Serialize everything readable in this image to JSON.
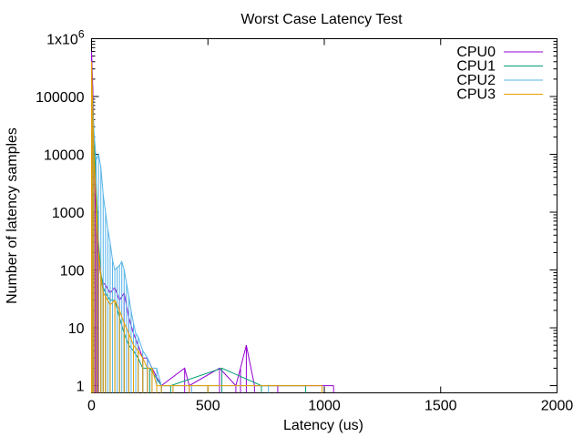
{
  "chart_data": {
    "type": "line",
    "title": "Worst Case Latency Test",
    "xlabel": "Latency (us)",
    "ylabel": "Number of latency samples",
    "x_scale": "linear",
    "y_scale": "log",
    "xlim": [
      0,
      2000
    ],
    "ylim": [
      0.75,
      1000000
    ],
    "x_ticks": [
      0,
      500,
      1000,
      1500,
      2000
    ],
    "y_ticks": [
      {
        "value": 1,
        "label": "1"
      },
      {
        "value": 10,
        "label": "10"
      },
      {
        "value": 100,
        "label": "100"
      },
      {
        "value": 1000,
        "label": "1000"
      },
      {
        "value": 10000,
        "label": "10000"
      },
      {
        "value": 100000,
        "label": "100000"
      },
      {
        "value": 1000000,
        "label": "1x10",
        "superscript": "6"
      }
    ],
    "legend_position": "top-right",
    "grid": false,
    "series": [
      {
        "name": "CPU0",
        "color": "#9400d3",
        "points": [
          [
            0,
            600000
          ],
          [
            5,
            150000
          ],
          [
            10,
            15000
          ],
          [
            15,
            3000
          ],
          [
            20,
            800
          ],
          [
            25,
            300
          ],
          [
            30,
            150
          ],
          [
            40,
            80
          ],
          [
            50,
            60
          ],
          [
            60,
            55
          ],
          [
            80,
            40
          ],
          [
            100,
            50
          ],
          [
            120,
            30
          ],
          [
            140,
            40
          ],
          [
            160,
            15
          ],
          [
            180,
            8
          ],
          [
            200,
            5
          ],
          [
            220,
            3
          ],
          [
            240,
            3
          ],
          [
            260,
            2
          ],
          [
            300,
            1
          ],
          [
            400,
            2
          ],
          [
            420,
            1
          ],
          [
            550,
            2
          ],
          [
            620,
            1
          ],
          [
            640,
            2
          ],
          [
            665,
            5
          ],
          [
            700,
            1
          ],
          [
            800,
            1
          ],
          [
            1040,
            1
          ]
        ]
      },
      {
        "name": "CPU1",
        "color": "#009e73",
        "points": [
          [
            0,
            200000
          ],
          [
            5,
            80000
          ],
          [
            10,
            20000
          ],
          [
            20,
            3000
          ],
          [
            30,
            300
          ],
          [
            40,
            90
          ],
          [
            50,
            50
          ],
          [
            60,
            40
          ],
          [
            80,
            30
          ],
          [
            100,
            30
          ],
          [
            120,
            15
          ],
          [
            140,
            8
          ],
          [
            160,
            5
          ],
          [
            180,
            4
          ],
          [
            200,
            3
          ],
          [
            220,
            2
          ],
          [
            250,
            2
          ],
          [
            300,
            1
          ],
          [
            340,
            1
          ],
          [
            560,
            2
          ],
          [
            730,
            1
          ],
          [
            920,
            1
          ]
        ]
      },
      {
        "name": "CPU2",
        "color": "#56b4e9",
        "points": [
          [
            0,
            350000
          ],
          [
            5,
            70000
          ],
          [
            10,
            25000
          ],
          [
            20,
            8000
          ],
          [
            30,
            10000
          ],
          [
            40,
            6000
          ],
          [
            50,
            2000
          ],
          [
            60,
            1000
          ],
          [
            70,
            500
          ],
          [
            80,
            300
          ],
          [
            90,
            150
          ],
          [
            100,
            100
          ],
          [
            110,
            110
          ],
          [
            120,
            120
          ],
          [
            130,
            140
          ],
          [
            140,
            100
          ],
          [
            150,
            60
          ],
          [
            160,
            35
          ],
          [
            170,
            20
          ],
          [
            180,
            12
          ],
          [
            190,
            8
          ],
          [
            200,
            7
          ],
          [
            220,
            4
          ],
          [
            240,
            3
          ],
          [
            260,
            2
          ],
          [
            280,
            2
          ],
          [
            300,
            1
          ],
          [
            350,
            1
          ],
          [
            430,
            1
          ],
          [
            760,
            1
          ]
        ]
      },
      {
        "name": "CPU3",
        "color": "#e69f00",
        "points": [
          [
            0,
            400000
          ],
          [
            5,
            60000
          ],
          [
            10,
            10000
          ],
          [
            20,
            1500
          ],
          [
            30,
            200
          ],
          [
            40,
            80
          ],
          [
            50,
            40
          ],
          [
            60,
            35
          ],
          [
            80,
            25
          ],
          [
            100,
            30
          ],
          [
            120,
            20
          ],
          [
            140,
            12
          ],
          [
            160,
            8
          ],
          [
            180,
            5
          ],
          [
            200,
            4
          ],
          [
            220,
            3
          ],
          [
            240,
            2
          ],
          [
            260,
            2
          ],
          [
            280,
            1
          ],
          [
            300,
            1
          ],
          [
            350,
            1
          ],
          [
            420,
            1
          ],
          [
            500,
            1
          ],
          [
            990,
            1
          ]
        ]
      }
    ]
  }
}
